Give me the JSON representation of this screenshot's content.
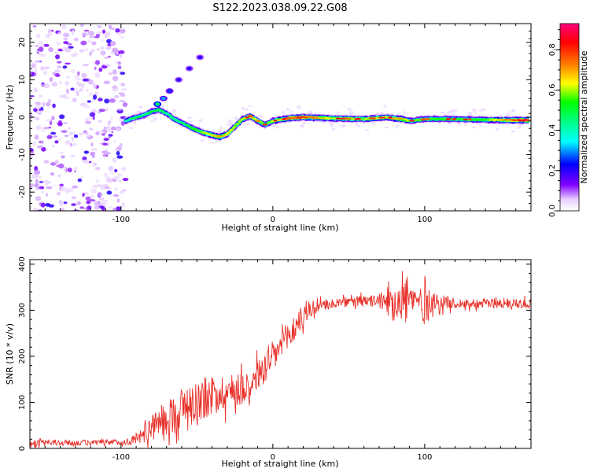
{
  "title": "S122.2023.038.09.22.G08",
  "colors": {
    "snr_line": "#e8312a",
    "background": "#ffffff",
    "axis": "#000000",
    "track_low": "#8a2be2"
  },
  "chart_data": [
    {
      "type": "heatmap",
      "xlabel": "Height of straight line (km)",
      "ylabel": "Frequency (Hz)",
      "xlim": [
        -160,
        170
      ],
      "ylim": [
        -25,
        25
      ],
      "xticks": [
        -100,
        0,
        100
      ],
      "yticks": [
        -20,
        -10,
        0,
        10,
        20
      ],
      "colorbar": {
        "label": "Normalized spectral amplitude",
        "range": [
          0,
          0.93
        ],
        "ticks": [
          0.0,
          0.2,
          0.4,
          0.6,
          0.8
        ],
        "colormap": [
          "#ffffff",
          "#8000ff",
          "#0000ff",
          "#00ffff",
          "#00ff00",
          "#ffff00",
          "#ff8000",
          "#ff0000",
          "#ff0080"
        ]
      },
      "noise_region": {
        "x": [
          -160,
          -97
        ],
        "y": [
          -25,
          25
        ]
      },
      "track": [
        {
          "x": -97,
          "y": -1.0,
          "amp": 0.4
        },
        {
          "x": -90,
          "y": 0.0,
          "amp": 0.5
        },
        {
          "x": -85,
          "y": 0.5,
          "amp": 0.45
        },
        {
          "x": -80,
          "y": 1.5,
          "amp": 0.5
        },
        {
          "x": -75,
          "y": 2.0,
          "amp": 0.5
        },
        {
          "x": -70,
          "y": 1.0,
          "amp": 0.45
        },
        {
          "x": -65,
          "y": -0.5,
          "amp": 0.45
        },
        {
          "x": -60,
          "y": -1.5,
          "amp": 0.45
        },
        {
          "x": -55,
          "y": -2.5,
          "amp": 0.5
        },
        {
          "x": -50,
          "y": -3.5,
          "amp": 0.55
        },
        {
          "x": -45,
          "y": -4.2,
          "amp": 0.6
        },
        {
          "x": -40,
          "y": -4.8,
          "amp": 0.65
        },
        {
          "x": -35,
          "y": -5.3,
          "amp": 0.7
        },
        {
          "x": -30,
          "y": -4.5,
          "amp": 0.65
        },
        {
          "x": -25,
          "y": -2.5,
          "amp": 0.6
        },
        {
          "x": -20,
          "y": -0.5,
          "amp": 0.6
        },
        {
          "x": -15,
          "y": 0.3,
          "amp": 0.7
        },
        {
          "x": -10,
          "y": -1.0,
          "amp": 0.6
        },
        {
          "x": -5,
          "y": -2.0,
          "amp": 0.55
        },
        {
          "x": 0,
          "y": -1.0,
          "amp": 0.6
        },
        {
          "x": 10,
          "y": -0.3,
          "amp": 0.75
        },
        {
          "x": 20,
          "y": 0.0,
          "amp": 0.8
        },
        {
          "x": 40,
          "y": -0.3,
          "amp": 0.6
        },
        {
          "x": 60,
          "y": -0.5,
          "amp": 0.6
        },
        {
          "x": 75,
          "y": 0.0,
          "amp": 0.65
        },
        {
          "x": 85,
          "y": -0.5,
          "amp": 0.7
        },
        {
          "x": 90,
          "y": -1.0,
          "amp": 0.6
        },
        {
          "x": 100,
          "y": -0.5,
          "amp": 0.55
        },
        {
          "x": 120,
          "y": -0.5,
          "amp": 0.55
        },
        {
          "x": 140,
          "y": -0.7,
          "amp": 0.55
        },
        {
          "x": 160,
          "y": -0.8,
          "amp": 0.8
        },
        {
          "x": 168,
          "y": -0.8,
          "amp": 0.9
        }
      ],
      "blobs": [
        {
          "x": -76,
          "y": 3.5,
          "amp": 0.45
        },
        {
          "x": -72,
          "y": 5.0,
          "amp": 0.3
        },
        {
          "x": -68,
          "y": 7.0,
          "amp": 0.25
        },
        {
          "x": -62,
          "y": 10.0,
          "amp": 0.2
        },
        {
          "x": -55,
          "y": 13.0,
          "amp": 0.2
        },
        {
          "x": -48,
          "y": 16.0,
          "amp": 0.2
        }
      ]
    },
    {
      "type": "line",
      "xlabel": "Height of straight line (km)",
      "ylabel": "SNR (10 * v/v)",
      "xlim": [
        -160,
        170
      ],
      "ylim": [
        0,
        410
      ],
      "xticks": [
        -100,
        0,
        100
      ],
      "yticks": [
        0,
        100,
        200,
        300,
        400
      ],
      "series": [
        {
          "trend": [
            [
              -160,
              12
            ],
            [
              -120,
              12
            ],
            [
              -95,
              14
            ],
            [
              -85,
              30
            ],
            [
              -75,
              55
            ],
            [
              -65,
              75
            ],
            [
              -55,
              100
            ],
            [
              -45,
              110
            ],
            [
              -35,
              120
            ],
            [
              -25,
              125
            ],
            [
              -15,
              140
            ],
            [
              -5,
              175
            ],
            [
              5,
              220
            ],
            [
              12,
              250
            ],
            [
              18,
              280
            ],
            [
              25,
              300
            ],
            [
              35,
              312
            ],
            [
              50,
              318
            ],
            [
              70,
              320
            ],
            [
              90,
              322
            ],
            [
              100,
              320
            ],
            [
              120,
              315
            ],
            [
              150,
              315
            ],
            [
              170,
              315
            ]
          ],
          "noise_amplitude": [
            [
              -160,
              8
            ],
            [
              -95,
              8
            ],
            [
              -85,
              25
            ],
            [
              -60,
              60
            ],
            [
              -40,
              55
            ],
            [
              -20,
              45
            ],
            [
              0,
              45
            ],
            [
              15,
              40
            ],
            [
              25,
              20
            ],
            [
              40,
              12
            ],
            [
              70,
              18
            ],
            [
              80,
              60
            ],
            [
              90,
              55
            ],
            [
              95,
              30
            ],
            [
              100,
              70
            ],
            [
              105,
              25
            ],
            [
              120,
              14
            ],
            [
              170,
              14
            ]
          ]
        }
      ]
    }
  ]
}
